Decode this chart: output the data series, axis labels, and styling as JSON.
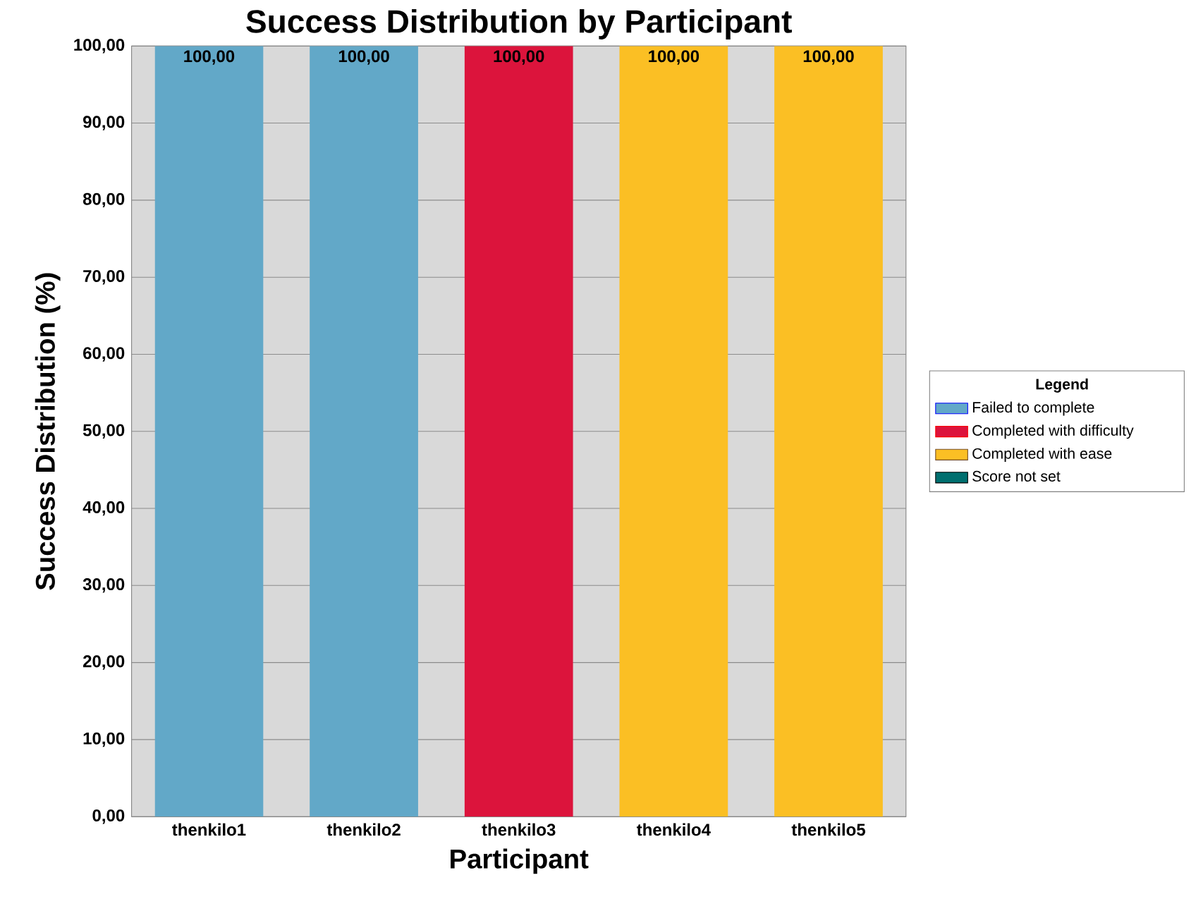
{
  "chart_data": {
    "type": "bar",
    "title": "Success Distribution by Participant",
    "xlabel": "Participant",
    "ylabel": "Success Distribution (%)",
    "legend_title": "Legend",
    "categories": [
      "thenkilo1",
      "thenkilo2",
      "thenkilo3",
      "thenkilo4",
      "thenkilo5"
    ],
    "stacked": true,
    "series": [
      {
        "name": "Failed to complete",
        "color": "#62a8c8",
        "values": [
          100,
          100,
          0,
          0,
          0
        ]
      },
      {
        "name": "Completed with difficulty",
        "color": "#dc143c",
        "values": [
          0,
          0,
          100,
          0,
          0
        ]
      },
      {
        "name": "Completed with ease",
        "color": "#fbbf24",
        "values": [
          0,
          0,
          0,
          100,
          100
        ]
      },
      {
        "name": "Score not set",
        "color": "#006f6f",
        "values": [
          0,
          0,
          0,
          0,
          0
        ]
      }
    ],
    "totals": [
      "100,00",
      "100,00",
      "100,00",
      "100,00",
      "100,00"
    ],
    "ylim": [
      0,
      100
    ],
    "yticks": [
      {
        "value": 0,
        "label": "0,00"
      },
      {
        "value": 10,
        "label": "10,00"
      },
      {
        "value": 20,
        "label": "20,00"
      },
      {
        "value": 30,
        "label": "30,00"
      },
      {
        "value": 40,
        "label": "40,00"
      },
      {
        "value": 50,
        "label": "50,00"
      },
      {
        "value": 60,
        "label": "60,00"
      },
      {
        "value": 70,
        "label": "70,00"
      },
      {
        "value": 80,
        "label": "80,00"
      },
      {
        "value": 90,
        "label": "90,00"
      },
      {
        "value": 100,
        "label": "100,00"
      }
    ],
    "grid": "y",
    "legend": "right"
  }
}
